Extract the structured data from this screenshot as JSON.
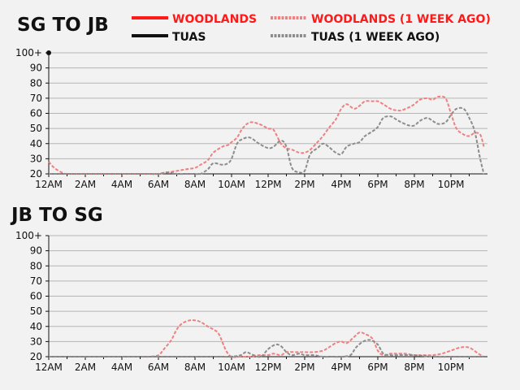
{
  "legend": [
    {
      "label": "WOODLANDS",
      "color": "#ff1a1a",
      "dashed": false
    },
    {
      "label": "WOODLANDS (1 WEEK AGO)",
      "color": "#f08080",
      "dashed": true
    },
    {
      "label": "TUAS",
      "color": "#111111",
      "dashed": false
    },
    {
      "label": "TUAS (1 WEEK AGO)",
      "color": "#8c8c8c",
      "dashed": true
    }
  ],
  "legend_text_colors": {
    "woodlands": "#ff1a1a",
    "tuas": "#111111"
  },
  "chart_data": [
    {
      "type": "line",
      "title": "SG TO JB",
      "xlabel": "",
      "ylabel": "",
      "x_ticks": [
        "12AM",
        "2AM",
        "4AM",
        "6AM",
        "8AM",
        "10AM",
        "12PM",
        "2PM",
        "4PM",
        "6PM",
        "8PM",
        "10PM"
      ],
      "y_ticks": [
        "20",
        "30",
        "40",
        "50",
        "60",
        "70",
        "80",
        "90",
        "100+"
      ],
      "ylim": [
        20,
        100
      ],
      "xlim": [
        0,
        24
      ],
      "grid": true,
      "series": [
        {
          "name": "WOODLANDS",
          "color": "#ff1a1a",
          "dashed": false,
          "x": [
            0
          ],
          "y": [
            100
          ]
        },
        {
          "name": "TUAS",
          "color": "#111111",
          "dashed": false,
          "x": [],
          "y": []
        },
        {
          "name": "WOODLANDS (1 WEEK AGO)",
          "color": "#f08080",
          "dashed": true,
          "x": [
            0,
            0.3,
            0.7,
            1,
            2,
            3,
            4,
            5,
            5.5,
            6,
            6.5,
            7,
            7.5,
            8,
            8.3,
            8.7,
            9,
            9.5,
            9.8,
            10,
            10.3,
            10.6,
            11,
            11.5,
            12,
            12.3,
            12.7,
            13,
            13.3,
            13.7,
            14,
            14.3,
            14.7,
            15,
            15.3,
            15.7,
            16,
            16.3,
            16.7,
            17,
            17.3,
            17.7,
            18,
            18.3,
            18.7,
            19,
            19.3,
            19.7,
            20,
            20.3,
            20.7,
            21,
            21.3,
            21.7,
            22,
            22.3,
            22.7,
            23,
            23.3,
            23.6,
            23.8
          ],
          "y": [
            28,
            24,
            21,
            20,
            20,
            20,
            20,
            20,
            20,
            20,
            21,
            22,
            23,
            24,
            26,
            29,
            34,
            38,
            39,
            41,
            44,
            50,
            54,
            53,
            50,
            49,
            40,
            37,
            36,
            34,
            34,
            36,
            41,
            45,
            50,
            56,
            63,
            66,
            63,
            65,
            68,
            68,
            68,
            66,
            63,
            62,
            62,
            64,
            66,
            69,
            70,
            69,
            71,
            70,
            60,
            50,
            46,
            45,
            47,
            46,
            38
          ]
        },
        {
          "name": "TUAS (1 WEEK AGO)",
          "color": "#8c8c8c",
          "dashed": true,
          "x": [
            0,
            1,
            2,
            3,
            4,
            5,
            5.5,
            6,
            6.5,
            7,
            7.5,
            8,
            8.3,
            8.7,
            9,
            9.5,
            9.8,
            10,
            10.3,
            10.6,
            11,
            11.5,
            12,
            12.3,
            12.7,
            13,
            13.3,
            13.7,
            14,
            14.3,
            14.7,
            15,
            15.3,
            15.7,
            16,
            16.3,
            16.7,
            17,
            17.3,
            17.7,
            18,
            18.3,
            18.7,
            19,
            19.3,
            19.7,
            20,
            20.3,
            20.7,
            21,
            21.3,
            21.7,
            22,
            22.3,
            22.7,
            23,
            23.3,
            23.6,
            23.8
          ],
          "y": [
            20,
            20,
            20,
            20,
            20,
            20,
            20,
            20,
            21,
            20,
            20,
            20,
            20,
            23,
            27,
            26,
            27,
            30,
            40,
            43,
            44,
            40,
            37,
            38,
            42,
            38,
            24,
            21,
            22,
            33,
            37,
            40,
            38,
            34,
            33,
            38,
            40,
            41,
            45,
            48,
            51,
            57,
            58,
            56,
            54,
            52,
            52,
            55,
            57,
            55,
            53,
            54,
            59,
            63,
            63,
            57,
            48,
            30,
            20
          ]
        }
      ]
    },
    {
      "type": "line",
      "title": "JB TO SG",
      "xlabel": "",
      "ylabel": "",
      "x_ticks": [
        "12AM",
        "2AM",
        "4AM",
        "6AM",
        "8AM",
        "10AM",
        "12PM",
        "2PM",
        "4PM",
        "6PM",
        "8PM",
        "10PM"
      ],
      "y_ticks": [
        "20",
        "30",
        "40",
        "50",
        "60",
        "70",
        "80",
        "90",
        "100+"
      ],
      "ylim": [
        20,
        100
      ],
      "xlim": [
        0,
        24
      ],
      "grid": true,
      "series": [
        {
          "name": "WOODLANDS",
          "color": "#ff1a1a",
          "dashed": false,
          "x": [],
          "y": []
        },
        {
          "name": "TUAS",
          "color": "#111111",
          "dashed": false,
          "x": [],
          "y": []
        },
        {
          "name": "WOODLANDS (1 WEEK AGO)",
          "color": "#f08080",
          "dashed": true,
          "x": [
            0,
            1,
            2,
            3,
            4,
            5,
            5.5,
            6,
            6.3,
            6.7,
            7,
            7.3,
            7.7,
            8,
            8.3,
            8.7,
            9,
            9.3,
            9.7,
            10,
            10.5,
            11,
            11.5,
            12,
            12.3,
            12.7,
            13,
            13.5,
            14,
            14.5,
            15,
            15.3,
            15.7,
            16,
            16.3,
            16.7,
            17,
            17.3,
            17.7,
            18,
            18.3,
            18.7,
            19,
            19.5,
            20,
            20.5,
            21,
            21.5,
            22,
            22.5,
            23,
            23.5,
            23.8
          ],
          "y": [
            20,
            20,
            20,
            20,
            20,
            20,
            20,
            21,
            25,
            31,
            38,
            42,
            44,
            44,
            43,
            40,
            38,
            35,
            24,
            20,
            20,
            20,
            21,
            21,
            22,
            21,
            23,
            23,
            23,
            23,
            24,
            26,
            29,
            30,
            29,
            33,
            36,
            35,
            32,
            24,
            21,
            22,
            22,
            22,
            21,
            21,
            21,
            22,
            24,
            26,
            26,
            22,
            20
          ]
        },
        {
          "name": "TUAS (1 WEEK AGO)",
          "color": "#8c8c8c",
          "dashed": true,
          "x": [
            0,
            1,
            2,
            3,
            4,
            5,
            6,
            7,
            8,
            9,
            9.5,
            10,
            10.5,
            10.8,
            11.2,
            11.6,
            12,
            12.4,
            12.7,
            13,
            13.3,
            13.7,
            14,
            14.5,
            15,
            15.5,
            16,
            16.5,
            16.8,
            17.2,
            17.6,
            18,
            18.3,
            18.7,
            19,
            20,
            21,
            22,
            23,
            23.8
          ],
          "y": [
            20,
            20,
            20,
            20,
            20,
            20,
            20,
            20,
            20,
            20,
            20,
            20,
            21,
            23,
            21,
            20,
            25,
            28,
            27,
            23,
            21,
            22,
            21,
            21,
            20,
            20,
            20,
            21,
            26,
            30,
            31,
            28,
            22,
            21,
            21,
            21,
            20,
            20,
            20,
            20
          ]
        }
      ]
    }
  ]
}
